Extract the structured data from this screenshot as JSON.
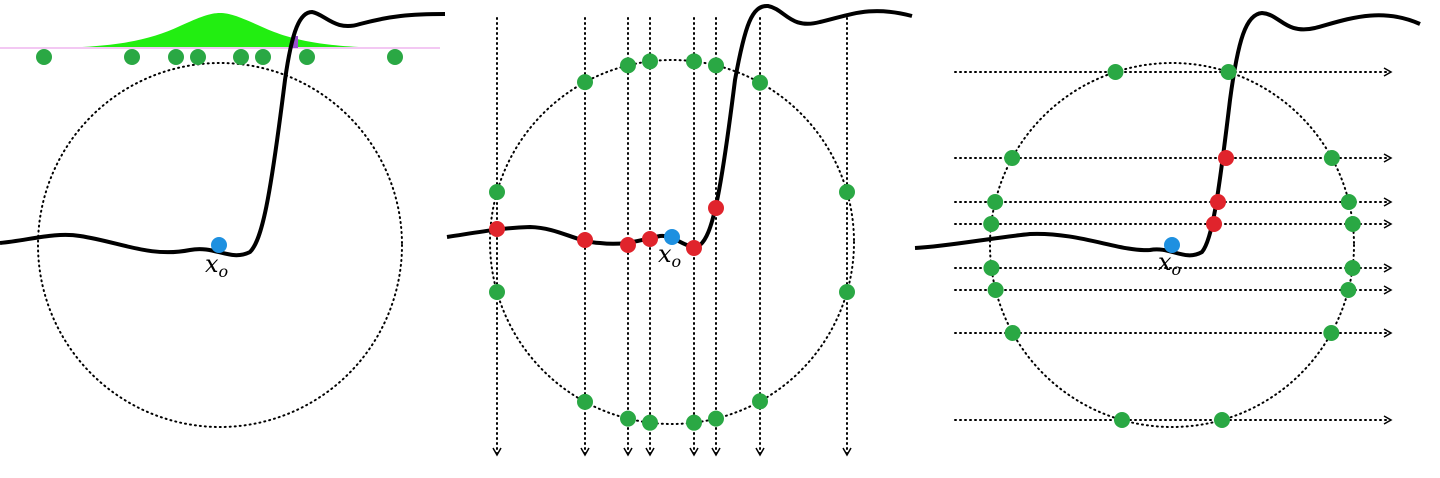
{
  "panels": [
    {
      "label": {
        "base": "x",
        "sub": "o"
      }
    },
    {
      "label": {
        "base": "x",
        "sub": "o"
      }
    },
    {
      "label": {
        "base": "x",
        "sub": "o"
      }
    }
  ]
}
